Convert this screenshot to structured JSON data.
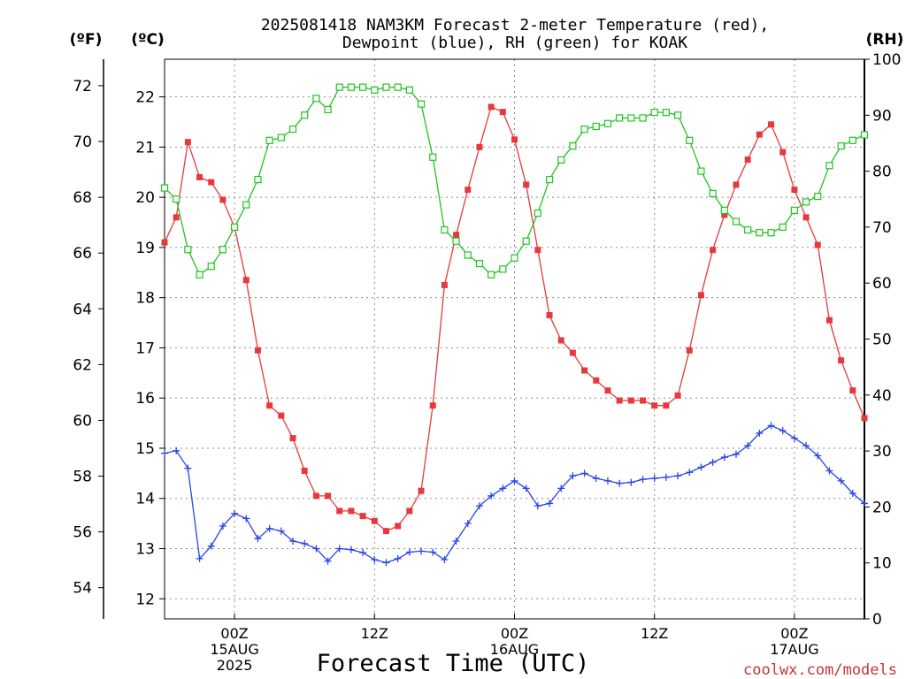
{
  "title_line1": "2025081418 NAM3KM Forecast 2-meter Temperature (red),",
  "title_line2": "Dewpoint (blue), RH (green) for KOAK",
  "unit_left_f": "(ºF)",
  "unit_left_c": "(ºC)",
  "unit_right_rh": "(RH)",
  "credit": "coolwx.com/models",
  "colors": {
    "temperature": "#e8383b",
    "dewpoint": "#2a44e8",
    "rh": "#22c422"
  },
  "chart_data": {
    "type": "line",
    "xlabel": "Forecast Time (UTC)",
    "x_start_hour": 18,
    "x_step_hours": 1,
    "x_range_hours": [
      18,
      78
    ],
    "x_ticks": [
      {
        "hour": 24,
        "lines": [
          "00Z",
          "15AUG",
          "2025"
        ]
      },
      {
        "hour": 36,
        "lines": [
          "12Z"
        ]
      },
      {
        "hour": 48,
        "lines": [
          "00Z",
          "16AUG"
        ]
      },
      {
        "hour": 60,
        "lines": [
          "12Z"
        ]
      },
      {
        "hour": 72,
        "lines": [
          "00Z",
          "17AUG"
        ]
      }
    ],
    "y_celsius": {
      "range": [
        11.6,
        22.75
      ],
      "ticks": [
        12,
        13,
        14,
        15,
        16,
        17,
        18,
        19,
        20,
        21,
        22
      ]
    },
    "y_fahrenheit": {
      "ticks": [
        54,
        56,
        58,
        60,
        62,
        64,
        66,
        68,
        70,
        72
      ]
    },
    "y_rh": {
      "range": [
        0,
        100
      ],
      "ticks": [
        0,
        10,
        20,
        30,
        40,
        50,
        60,
        70,
        80,
        90,
        100
      ]
    },
    "grid": true,
    "series": [
      {
        "name": "Temperature",
        "axis": "celsius",
        "marker": "filled-square",
        "values": [
          19.1,
          19.6,
          21.1,
          20.4,
          20.3,
          19.95,
          19.4,
          18.35,
          16.95,
          15.85,
          15.65,
          15.2,
          14.55,
          14.05,
          14.05,
          13.75,
          13.75,
          13.65,
          13.55,
          13.35,
          13.45,
          13.75,
          14.15,
          15.85,
          18.25,
          19.25,
          20.15,
          21.0,
          21.8,
          21.7,
          21.15,
          20.25,
          18.95,
          17.65,
          17.15,
          16.9,
          16.55,
          16.35,
          16.15,
          15.95,
          15.95,
          15.95,
          15.85,
          15.85,
          16.05,
          16.95,
          18.05,
          18.95,
          19.65,
          20.25,
          20.75,
          21.25,
          21.45,
          20.9,
          20.15,
          19.6,
          19.05,
          17.55,
          16.75,
          16.15,
          15.6
        ]
      },
      {
        "name": "Dewpoint",
        "axis": "celsius",
        "marker": "plus",
        "values": [
          14.9,
          14.95,
          14.6,
          12.8,
          13.05,
          13.45,
          13.7,
          13.6,
          13.2,
          13.4,
          13.35,
          13.15,
          13.1,
          13.0,
          12.75,
          13.0,
          12.98,
          12.92,
          12.78,
          12.72,
          12.8,
          12.93,
          12.95,
          12.93,
          12.78,
          13.15,
          13.5,
          13.85,
          14.05,
          14.2,
          14.35,
          14.2,
          13.85,
          13.9,
          14.2,
          14.45,
          14.5,
          14.4,
          14.35,
          14.3,
          14.32,
          14.38,
          14.4,
          14.42,
          14.45,
          14.52,
          14.62,
          14.72,
          14.82,
          14.88,
          15.05,
          15.3,
          15.45,
          15.35,
          15.2,
          15.05,
          14.85,
          14.55,
          14.35,
          14.1,
          13.9
        ]
      },
      {
        "name": "RH",
        "axis": "rh",
        "marker": "open-square",
        "values": [
          77,
          75,
          66,
          61.5,
          63,
          66,
          70,
          74,
          78.5,
          85.5,
          86,
          87.5,
          90,
          93,
          91,
          95,
          95,
          95,
          94.5,
          95,
          95,
          94.5,
          92,
          82.5,
          69.5,
          67.5,
          65,
          63.5,
          61.5,
          62.5,
          64.5,
          67.5,
          72.5,
          78.5,
          82,
          84.5,
          87.5,
          88,
          88.5,
          89.5,
          89.5,
          89.5,
          90.5,
          90.5,
          90,
          85.5,
          80,
          76,
          73,
          71,
          69.5,
          69,
          69,
          70,
          73,
          74.5,
          75.5,
          81,
          84.5,
          85.5,
          86.5
        ]
      }
    ]
  }
}
